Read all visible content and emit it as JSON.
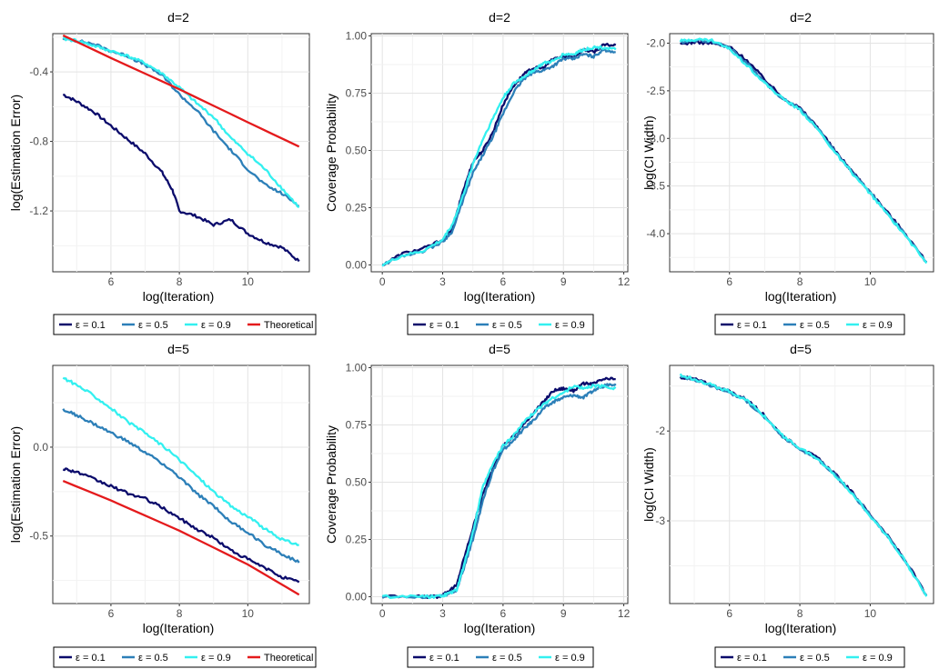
{
  "chart_data": [
    {
      "type": "line",
      "title": "d=2",
      "xlabel": "log(Iteration)",
      "ylabel": "log(Estimation Error)",
      "xlim": [
        4.3,
        11.8
      ],
      "ylim": [
        -1.55,
        -0.18
      ],
      "xticks": [
        6,
        8,
        10
      ],
      "yticks": [
        -0.4,
        -0.8,
        -1.2
      ],
      "xtick_labels": [
        "6",
        "8",
        "10"
      ],
      "ytick_labels": [
        "-0.4",
        "-0.8",
        "-1.2"
      ],
      "legend_position": "bottom",
      "series": [
        {
          "name": "ε = 0.1",
          "color": "#0b0b6b",
          "x": [
            4.6,
            5.0,
            5.5,
            6.0,
            6.5,
            7.0,
            7.5,
            7.8,
            8.0,
            8.5,
            9.0,
            9.5,
            10.0,
            10.5,
            11.0,
            11.5
          ],
          "y": [
            -0.53,
            -0.57,
            -0.63,
            -0.71,
            -0.79,
            -0.87,
            -0.98,
            -1.08,
            -1.2,
            -1.23,
            -1.28,
            -1.25,
            -1.33,
            -1.38,
            -1.41,
            -1.49
          ]
        },
        {
          "name": "ε = 0.5",
          "color": "#2c7fb8",
          "x": [
            4.6,
            5.0,
            5.5,
            6.0,
            6.5,
            7.0,
            7.5,
            8.0,
            8.5,
            9.0,
            9.5,
            10.0,
            10.5,
            11.0,
            11.5
          ],
          "y": [
            -0.21,
            -0.22,
            -0.24,
            -0.28,
            -0.31,
            -0.36,
            -0.42,
            -0.53,
            -0.62,
            -0.74,
            -0.85,
            -0.96,
            -1.05,
            -1.1,
            -1.17
          ]
        },
        {
          "name": "ε = 0.9",
          "color": "#33f0f0",
          "x": [
            4.6,
            5.0,
            5.5,
            6.0,
            6.5,
            7.0,
            7.5,
            8.0,
            8.5,
            9.0,
            9.5,
            10.0,
            10.5,
            11.0,
            11.5
          ],
          "y": [
            -0.21,
            -0.22,
            -0.25,
            -0.28,
            -0.31,
            -0.35,
            -0.41,
            -0.49,
            -0.58,
            -0.66,
            -0.78,
            -0.87,
            -0.96,
            -1.07,
            -1.18
          ]
        },
        {
          "name": "Theoretical",
          "color": "#e41a1c",
          "x": [
            4.6,
            6.0,
            8.0,
            10.0,
            11.5
          ],
          "y": [
            -0.19,
            -0.32,
            -0.5,
            -0.69,
            -0.83
          ]
        }
      ]
    },
    {
      "type": "line",
      "title": "d=2",
      "xlabel": "log(Iteration)",
      "ylabel": "Coverage Probability",
      "xlim": [
        -0.55,
        12.2
      ],
      "ylim": [
        -0.03,
        1.01
      ],
      "xticks": [
        0,
        3,
        6,
        9,
        12
      ],
      "yticks": [
        0.0,
        0.25,
        0.5,
        0.75,
        1.0
      ],
      "xtick_labels": [
        "0",
        "3",
        "6",
        "9",
        "12"
      ],
      "ytick_labels": [
        "0.00",
        "0.25",
        "0.50",
        "0.75",
        "1.00"
      ],
      "legend_position": "bottom",
      "series": [
        {
          "name": "ε = 0.1",
          "color": "#0b0b6b",
          "x": [
            0,
            1,
            2,
            3,
            3.5,
            4.0,
            4.5,
            5.0,
            5.5,
            6.0,
            6.5,
            7.0,
            7.5,
            8.0,
            8.5,
            9.0,
            9.5,
            10.0,
            10.5,
            11.0,
            11.6
          ],
          "y": [
            0.0,
            0.05,
            0.07,
            0.11,
            0.16,
            0.32,
            0.45,
            0.5,
            0.58,
            0.7,
            0.78,
            0.83,
            0.86,
            0.86,
            0.9,
            0.91,
            0.91,
            0.94,
            0.93,
            0.96,
            0.96
          ]
        },
        {
          "name": "ε = 0.5",
          "color": "#2c7fb8",
          "x": [
            0,
            1,
            2,
            3,
            3.5,
            4.0,
            4.5,
            5.0,
            5.5,
            6.0,
            6.5,
            7.0,
            7.5,
            8.0,
            8.5,
            9.0,
            9.5,
            10.0,
            10.5,
            11.0,
            11.6
          ],
          "y": [
            0.0,
            0.04,
            0.06,
            0.1,
            0.15,
            0.28,
            0.4,
            0.48,
            0.56,
            0.66,
            0.75,
            0.81,
            0.84,
            0.85,
            0.87,
            0.9,
            0.9,
            0.92,
            0.91,
            0.94,
            0.93
          ]
        },
        {
          "name": "ε = 0.9",
          "color": "#33f0f0",
          "x": [
            0,
            1,
            2,
            3,
            3.5,
            4.0,
            4.5,
            5.0,
            5.5,
            6.0,
            6.5,
            7.0,
            7.5,
            8.0,
            8.5,
            9.0,
            9.5,
            10.0,
            10.5,
            11.0,
            11.6
          ],
          "y": [
            0.0,
            0.04,
            0.06,
            0.11,
            0.18,
            0.3,
            0.44,
            0.55,
            0.64,
            0.73,
            0.79,
            0.82,
            0.85,
            0.88,
            0.89,
            0.92,
            0.92,
            0.94,
            0.95,
            0.95,
            0.94
          ]
        }
      ]
    },
    {
      "type": "line",
      "title": "d=2",
      "xlabel": "log(Iteration)",
      "ylabel": "log(CI Width)",
      "xlim": [
        4.3,
        11.8
      ],
      "ylim": [
        -4.4,
        -1.9
      ],
      "xticks": [
        6,
        8,
        10
      ],
      "yticks": [
        -2.0,
        -2.5,
        -3.0,
        -3.5,
        -4.0
      ],
      "xtick_labels": [
        "6",
        "8",
        "10"
      ],
      "ytick_labels": [
        "-2.0",
        "-2.5",
        "-3.0",
        "-3.5",
        "-4.0"
      ],
      "legend_position": "bottom",
      "series": [
        {
          "name": "ε = 0.1",
          "color": "#0b0b6b",
          "x": [
            4.6,
            5.0,
            5.5,
            6.0,
            6.5,
            7.0,
            7.5,
            8.0,
            8.5,
            9.0,
            9.5,
            10.0,
            10.5,
            11.0,
            11.6
          ],
          "y": [
            -2.01,
            -1.99,
            -2.0,
            -2.04,
            -2.18,
            -2.38,
            -2.57,
            -2.68,
            -2.88,
            -3.13,
            -3.35,
            -3.56,
            -3.78,
            -4.0,
            -4.3
          ]
        },
        {
          "name": "ε = 0.5",
          "color": "#2c7fb8",
          "x": [
            4.6,
            5.0,
            5.5,
            6.0,
            6.5,
            7.0,
            7.5,
            8.0,
            8.5,
            9.0,
            9.5,
            10.0,
            10.5,
            11.0,
            11.6
          ],
          "y": [
            -1.99,
            -1.97,
            -1.98,
            -2.05,
            -2.21,
            -2.41,
            -2.58,
            -2.69,
            -2.89,
            -3.14,
            -3.36,
            -3.57,
            -3.79,
            -4.01,
            -4.3
          ]
        },
        {
          "name": "ε = 0.9",
          "color": "#33f0f0",
          "x": [
            4.6,
            5.0,
            5.5,
            6.0,
            6.5,
            7.0,
            7.5,
            8.0,
            8.5,
            9.0,
            9.5,
            10.0,
            10.5,
            11.0,
            11.6
          ],
          "y": [
            -1.98,
            -1.96,
            -1.97,
            -2.06,
            -2.23,
            -2.42,
            -2.58,
            -2.7,
            -2.9,
            -3.15,
            -3.37,
            -3.58,
            -3.8,
            -4.02,
            -4.31
          ]
        }
      ]
    },
    {
      "type": "line",
      "title": "d=5",
      "xlabel": "log(Iteration)",
      "ylabel": "log(Estimation Error)",
      "xlim": [
        4.3,
        11.8
      ],
      "ylim": [
        -0.88,
        0.46
      ],
      "xticks": [
        6,
        8,
        10
      ],
      "yticks": [
        0.0,
        -0.5
      ],
      "xtick_labels": [
        "6",
        "8",
        "10"
      ],
      "ytick_labels": [
        "0.0",
        "-0.5"
      ],
      "legend_position": "bottom",
      "series": [
        {
          "name": "ε = 0.1",
          "color": "#0b0b6b",
          "x": [
            4.6,
            5.0,
            5.5,
            6.0,
            6.5,
            7.0,
            7.5,
            8.0,
            8.5,
            9.0,
            9.5,
            10.0,
            10.5,
            11.0,
            11.5
          ],
          "y": [
            -0.12,
            -0.14,
            -0.18,
            -0.22,
            -0.26,
            -0.29,
            -0.34,
            -0.4,
            -0.46,
            -0.51,
            -0.58,
            -0.63,
            -0.68,
            -0.73,
            -0.76
          ]
        },
        {
          "name": "ε = 0.5",
          "color": "#2c7fb8",
          "x": [
            4.6,
            5.0,
            5.5,
            6.0,
            6.5,
            7.0,
            7.5,
            8.0,
            8.5,
            9.0,
            9.5,
            10.0,
            10.5,
            11.0,
            11.5
          ],
          "y": [
            0.21,
            0.18,
            0.13,
            0.08,
            0.03,
            -0.03,
            -0.09,
            -0.17,
            -0.26,
            -0.33,
            -0.42,
            -0.48,
            -0.55,
            -0.6,
            -0.65
          ]
        },
        {
          "name": "ε = 0.9",
          "color": "#33f0f0",
          "x": [
            4.6,
            5.0,
            5.5,
            6.0,
            6.5,
            7.0,
            7.5,
            8.0,
            8.5,
            9.0,
            9.5,
            10.0,
            10.5,
            11.0,
            11.5
          ],
          "y": [
            0.39,
            0.35,
            0.29,
            0.22,
            0.14,
            0.08,
            0.01,
            -0.07,
            -0.16,
            -0.25,
            -0.33,
            -0.39,
            -0.46,
            -0.52,
            -0.55
          ]
        },
        {
          "name": "Theoretical",
          "color": "#e41a1c",
          "x": [
            4.6,
            6.0,
            8.0,
            10.0,
            11.5
          ],
          "y": [
            -0.19,
            -0.3,
            -0.47,
            -0.66,
            -0.83
          ]
        }
      ]
    },
    {
      "type": "line",
      "title": "d=5",
      "xlabel": "log(Iteration)",
      "ylabel": "Coverage Probability",
      "xlim": [
        -0.55,
        12.2
      ],
      "ylim": [
        -0.03,
        1.01
      ],
      "xticks": [
        0,
        3,
        6,
        9,
        12
      ],
      "yticks": [
        0.0,
        0.25,
        0.5,
        0.75,
        1.0
      ],
      "xtick_labels": [
        "0",
        "3",
        "6",
        "9",
        "12"
      ],
      "ytick_labels": [
        "0.00",
        "0.25",
        "0.50",
        "0.75",
        "1.00"
      ],
      "legend_position": "bottom",
      "series": [
        {
          "name": "ε = 0.1",
          "color": "#0b0b6b",
          "x": [
            0,
            2.0,
            2.8,
            3.2,
            3.7,
            4.0,
            4.5,
            5.0,
            5.5,
            6.0,
            6.5,
            7.0,
            7.5,
            8.0,
            8.5,
            9.0,
            9.5,
            10.0,
            10.5,
            11.0,
            11.6
          ],
          "y": [
            0.0,
            0.0,
            0.0,
            0.02,
            0.05,
            0.15,
            0.3,
            0.45,
            0.56,
            0.66,
            0.7,
            0.75,
            0.8,
            0.85,
            0.9,
            0.91,
            0.9,
            0.93,
            0.93,
            0.95,
            0.95
          ]
        },
        {
          "name": "ε = 0.5",
          "color": "#2c7fb8",
          "x": [
            0,
            2.0,
            2.8,
            3.2,
            3.7,
            4.0,
            4.5,
            5.0,
            5.5,
            6.0,
            6.5,
            7.0,
            7.5,
            8.0,
            8.5,
            9.0,
            9.5,
            10.0,
            10.5,
            11.0,
            11.6
          ],
          "y": [
            0.0,
            0.0,
            0.0,
            0.01,
            0.03,
            0.11,
            0.25,
            0.42,
            0.55,
            0.64,
            0.68,
            0.73,
            0.77,
            0.82,
            0.85,
            0.87,
            0.88,
            0.87,
            0.9,
            0.92,
            0.93
          ]
        },
        {
          "name": "ε = 0.9",
          "color": "#33f0f0",
          "x": [
            0,
            2.0,
            2.8,
            3.2,
            3.7,
            4.0,
            4.5,
            5.0,
            5.5,
            6.0,
            6.5,
            7.0,
            7.5,
            8.0,
            8.5,
            9.0,
            9.5,
            10.0,
            10.5,
            11.0,
            11.6
          ],
          "y": [
            0.0,
            0.0,
            0.0,
            0.01,
            0.03,
            0.12,
            0.28,
            0.48,
            0.58,
            0.66,
            0.7,
            0.76,
            0.8,
            0.84,
            0.87,
            0.89,
            0.92,
            0.91,
            0.92,
            0.92,
            0.91
          ]
        }
      ]
    },
    {
      "type": "line",
      "title": "d=5",
      "xlabel": "log(Iteration)",
      "ylabel": "log(CI Width)",
      "xlim": [
        4.3,
        11.8
      ],
      "ylim": [
        -3.92,
        -1.27
      ],
      "xticks": [
        6,
        8,
        10
      ],
      "yticks": [
        -2,
        -3
      ],
      "xtick_labels": [
        "6",
        "8",
        "10"
      ],
      "ytick_labels": [
        "-2",
        "-3"
      ],
      "legend_position": "bottom",
      "series": [
        {
          "name": "ε = 0.1",
          "color": "#0b0b6b",
          "x": [
            4.6,
            5.0,
            5.5,
            6.0,
            6.5,
            7.0,
            7.5,
            8.0,
            8.5,
            9.0,
            9.5,
            10.0,
            10.5,
            11.0,
            11.6
          ],
          "y": [
            -1.4,
            -1.42,
            -1.49,
            -1.56,
            -1.65,
            -1.83,
            -2.05,
            -2.19,
            -2.3,
            -2.48,
            -2.69,
            -2.93,
            -3.17,
            -3.44,
            -3.83
          ]
        },
        {
          "name": "ε = 0.5",
          "color": "#2c7fb8",
          "x": [
            4.6,
            5.0,
            5.5,
            6.0,
            6.5,
            7.0,
            7.5,
            8.0,
            8.5,
            9.0,
            9.5,
            10.0,
            10.5,
            11.0,
            11.6
          ],
          "y": [
            -1.39,
            -1.43,
            -1.5,
            -1.57,
            -1.67,
            -1.85,
            -2.06,
            -2.2,
            -2.31,
            -2.49,
            -2.7,
            -2.94,
            -3.18,
            -3.45,
            -3.83
          ]
        },
        {
          "name": "ε = 0.9",
          "color": "#33f0f0",
          "x": [
            4.6,
            5.0,
            5.5,
            6.0,
            6.5,
            7.0,
            7.5,
            8.0,
            8.5,
            9.0,
            9.5,
            10.0,
            10.5,
            11.0,
            11.6
          ],
          "y": [
            -1.38,
            -1.42,
            -1.49,
            -1.56,
            -1.66,
            -1.84,
            -2.05,
            -2.19,
            -2.31,
            -2.49,
            -2.7,
            -2.94,
            -3.18,
            -3.45,
            -3.84
          ]
        }
      ]
    }
  ]
}
